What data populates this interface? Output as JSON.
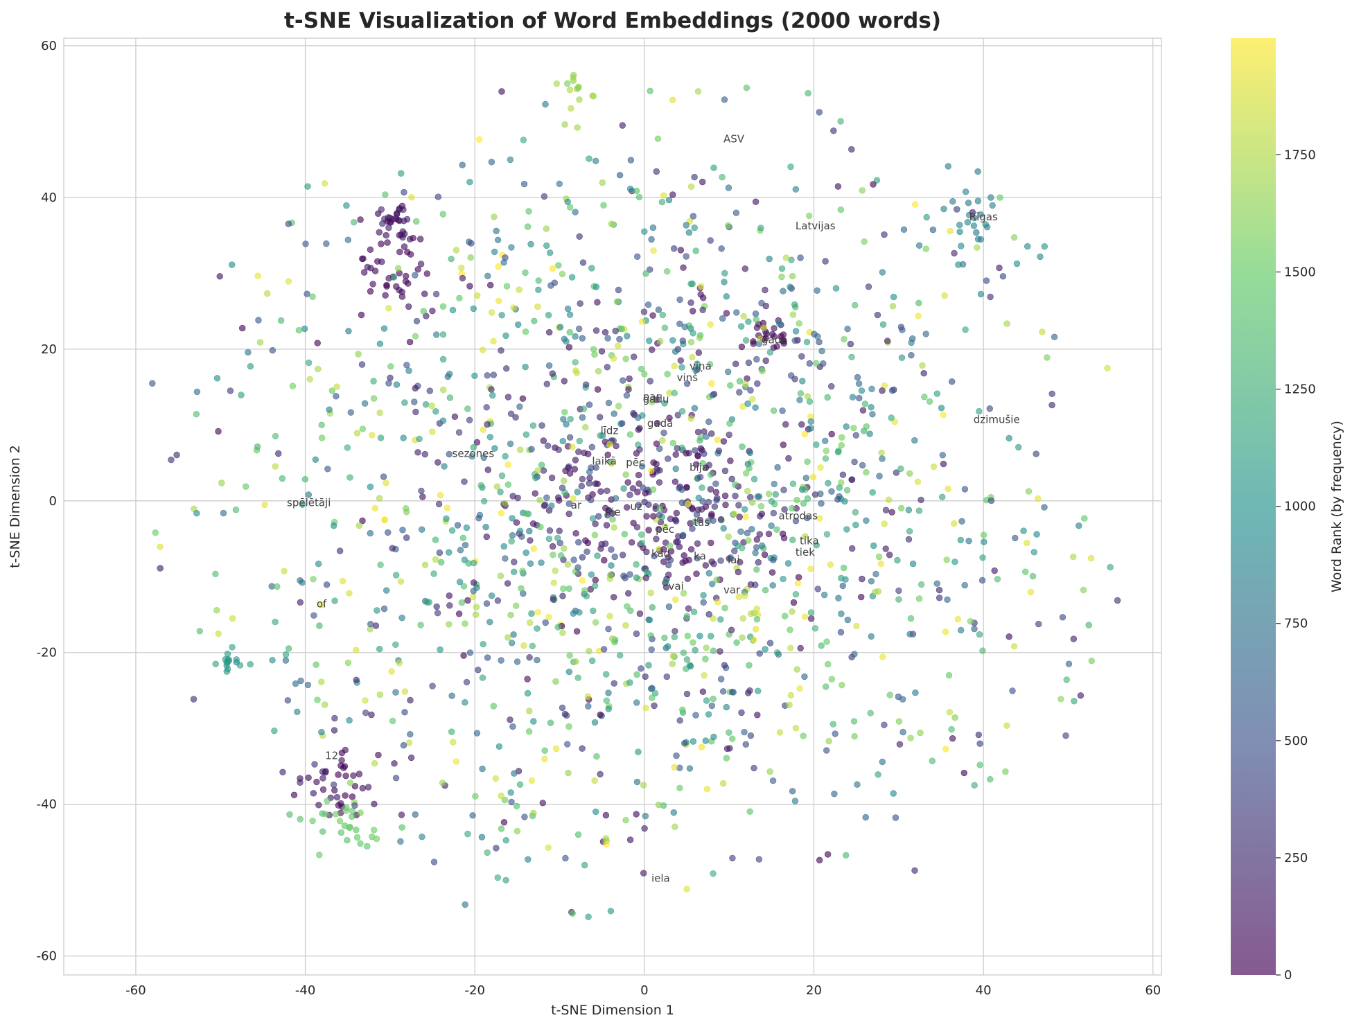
{
  "chart_data": {
    "type": "scatter",
    "title": "t-SNE Visualization of Word Embeddings (2000 words)",
    "xlabel": "t-SNE Dimension 1",
    "ylabel": "t-SNE Dimension 2",
    "xlim": [
      -68.5,
      61.0
    ],
    "ylim": [
      -62.5,
      61.0
    ],
    "xticks": [
      -60,
      -40,
      -20,
      0,
      20,
      40,
      60
    ],
    "yticks": [
      -60,
      -40,
      -20,
      0,
      20,
      40,
      60
    ],
    "grid": true,
    "total_points": 2000,
    "colorbar": {
      "label": "Word Rank (by frequency)",
      "range": [
        0,
        1999
      ],
      "ticks": [
        0,
        250,
        500,
        750,
        1000,
        1250,
        1500,
        1750
      ],
      "colormap": "viridis",
      "colors": [
        "#440154",
        "#3b528b",
        "#21918c",
        "#5ec962",
        "#fde725"
      ]
    },
    "clusters": [
      {
        "x": -30,
        "y": 36.5,
        "spread": 1.2,
        "count": 30,
        "rank": 120
      },
      {
        "x": -30,
        "y": 30,
        "spread": 2.5,
        "count": 40,
        "rank": 60
      },
      {
        "x": -36,
        "y": -38,
        "spread": 2.5,
        "count": 40,
        "rank": 80
      },
      {
        "x": -35,
        "y": -42,
        "spread": 2.5,
        "count": 30,
        "rank": 1500
      },
      {
        "x": 15,
        "y": 22,
        "spread": 1.2,
        "count": 25,
        "rank": 50
      },
      {
        "x": -49,
        "y": -21,
        "spread": 1.0,
        "count": 15,
        "rank": 1100
      },
      {
        "x": -8,
        "y": 53,
        "spread": 1.5,
        "count": 15,
        "rank": 1700
      },
      {
        "x": 0,
        "y": 0,
        "spread": 7,
        "count": 120,
        "rank": 100
      },
      {
        "x": 40,
        "y": 36,
        "spread": 3,
        "count": 25,
        "rank": 900
      }
    ],
    "word_labels": [
      {
        "text": "ASV",
        "x": 9,
        "y": 47
      },
      {
        "text": "Latvijas",
        "x": 17.5,
        "y": 35.5
      },
      {
        "text": "Rīgas",
        "x": 38,
        "y": 36.7
      },
      {
        "text": "gada",
        "x": 13.5,
        "y": 20.5
      },
      {
        "text": "viņa",
        "x": 5,
        "y": 17
      },
      {
        "text": "viņš",
        "x": 3.5,
        "y": 15.5
      },
      {
        "text": "par",
        "x": -0.5,
        "y": 13
      },
      {
        "text": "gadu",
        "x": -0.5,
        "y": 12.7
      },
      {
        "text": "gadā",
        "x": 0,
        "y": 9.5
      },
      {
        "text": "dzimušie",
        "x": 38.5,
        "y": 10
      },
      {
        "text": "līdz",
        "x": -5.5,
        "y": 8.5
      },
      {
        "text": "sezones",
        "x": -23,
        "y": 5.5
      },
      {
        "text": "laikā",
        "x": -6.5,
        "y": 4.5
      },
      {
        "text": "pēc",
        "x": -2.5,
        "y": 4.3
      },
      {
        "text": "bija",
        "x": 5,
        "y": 3.7
      },
      {
        "text": "spēlētāji",
        "x": -42.5,
        "y": -1
      },
      {
        "text": "ar",
        "x": -9,
        "y": -1.3
      },
      {
        "text": "uz",
        "x": -2,
        "y": -1.5
      },
      {
        "text": "pie",
        "x": -5,
        "y": -2.2
      },
      {
        "text": "atrodas",
        "x": 15.5,
        "y": -2.7
      },
      {
        "text": "tas",
        "x": 5.5,
        "y": -3.6
      },
      {
        "text": "pēc",
        "x": 1,
        "y": -4.5
      },
      {
        "text": "tika",
        "x": 18,
        "y": -6
      },
      {
        "text": "tiek",
        "x": 17.5,
        "y": -7.5
      },
      {
        "text": "ka",
        "x": 5.5,
        "y": -8
      },
      {
        "text": "kad",
        "x": 0.5,
        "y": -7.7
      },
      {
        "text": "lai",
        "x": 9.5,
        "y": -8.5
      },
      {
        "text": "vai",
        "x": 2.5,
        "y": -12
      },
      {
        "text": "var",
        "x": 9,
        "y": -12.5
      },
      {
        "text": "of",
        "x": -39,
        "y": -14.3
      },
      {
        "text": "12",
        "x": -38,
        "y": -34.3
      },
      {
        "text": "iela",
        "x": 0.5,
        "y": -50.5
      }
    ]
  }
}
